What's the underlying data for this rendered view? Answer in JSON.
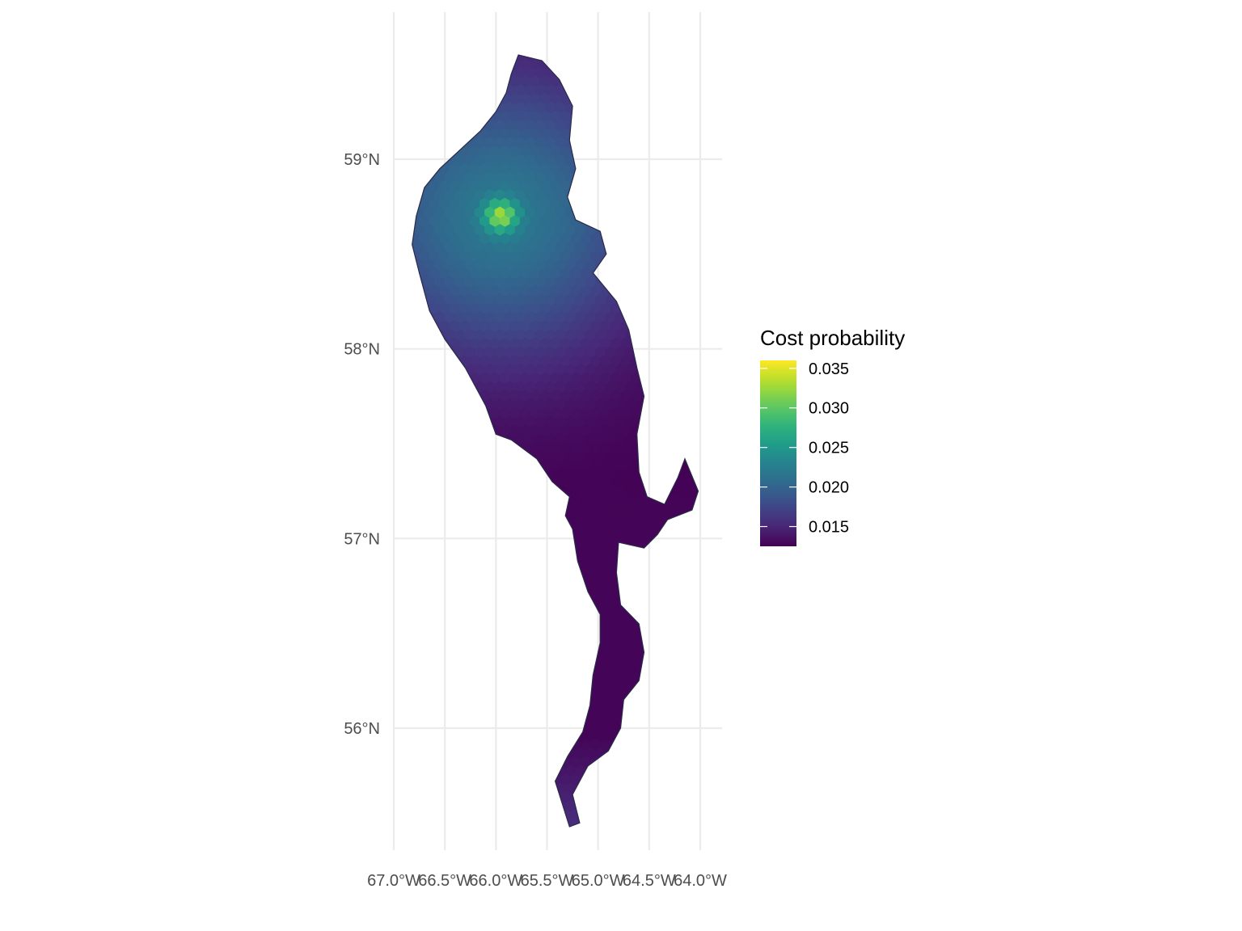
{
  "chart_data": {
    "type": "heatmap",
    "title": "",
    "xlabel": "",
    "ylabel": "",
    "x_ticks": [
      {
        "value": -67.0,
        "label": "67.0°W"
      },
      {
        "value": -66.5,
        "label": "66.5°W"
      },
      {
        "value": -66.0,
        "label": "66.0°W"
      },
      {
        "value": -65.5,
        "label": "65.5°W"
      },
      {
        "value": -65.0,
        "label": "65.0°W"
      },
      {
        "value": -64.5,
        "label": "64.5°W"
      },
      {
        "value": -64.0,
        "label": "64.0°W"
      }
    ],
    "y_ticks": [
      {
        "value": 56,
        "label": "56°N"
      },
      {
        "value": 57,
        "label": "57°N"
      },
      {
        "value": 58,
        "label": "58°N"
      },
      {
        "value": 59,
        "label": "59°N"
      }
    ],
    "xlim": [
      -67.0,
      -63.8
    ],
    "ylim": [
      55.4,
      59.6
    ],
    "grid": true,
    "colormap": "viridis",
    "legend": {
      "title": "Cost probability",
      "position": "right",
      "range": [
        0.0125,
        0.036
      ],
      "ticks": [
        {
          "value": 0.035,
          "label": "0.035"
        },
        {
          "value": 0.03,
          "label": "0.030"
        },
        {
          "value": 0.025,
          "label": "0.025"
        },
        {
          "value": 0.02,
          "label": "0.020"
        },
        {
          "value": 0.015,
          "label": "0.015"
        }
      ]
    },
    "value_field": {
      "background": 0.0125,
      "peaks": [
        {
          "lon": -65.95,
          "lat": 58.7,
          "amplitude": 0.0095,
          "radius_deg": 0.75
        },
        {
          "lon": -65.95,
          "lat": 58.7,
          "amplitude": 0.011,
          "radius_deg": 0.08
        }
      ],
      "south_trough": {
        "lat_max": 57.35,
        "value": 0.0128
      }
    },
    "region_outline": [
      [
        -65.78,
        59.55
      ],
      [
        -65.55,
        59.52
      ],
      [
        -65.38,
        59.42
      ],
      [
        -65.25,
        59.28
      ],
      [
        -65.28,
        59.1
      ],
      [
        -65.22,
        58.95
      ],
      [
        -65.3,
        58.8
      ],
      [
        -65.22,
        58.68
      ],
      [
        -64.98,
        58.62
      ],
      [
        -64.92,
        58.5
      ],
      [
        -65.05,
        58.4
      ],
      [
        -64.82,
        58.25
      ],
      [
        -64.7,
        58.1
      ],
      [
        -64.62,
        57.9
      ],
      [
        -64.55,
        57.75
      ],
      [
        -64.62,
        57.55
      ],
      [
        -64.6,
        57.35
      ],
      [
        -64.52,
        57.22
      ],
      [
        -64.35,
        57.18
      ],
      [
        -64.22,
        57.32
      ],
      [
        -64.15,
        57.42
      ],
      [
        -64.02,
        57.25
      ],
      [
        -64.08,
        57.15
      ],
      [
        -64.32,
        57.1
      ],
      [
        -64.42,
        57.02
      ],
      [
        -64.55,
        56.95
      ],
      [
        -64.8,
        56.98
      ],
      [
        -64.82,
        56.82
      ],
      [
        -64.78,
        56.65
      ],
      [
        -64.6,
        56.55
      ],
      [
        -64.55,
        56.4
      ],
      [
        -64.6,
        56.25
      ],
      [
        -64.75,
        56.15
      ],
      [
        -64.78,
        56.0
      ],
      [
        -64.9,
        55.88
      ],
      [
        -65.1,
        55.8
      ],
      [
        -65.25,
        55.65
      ],
      [
        -65.18,
        55.5
      ],
      [
        -65.28,
        55.48
      ],
      [
        -65.42,
        55.72
      ],
      [
        -65.3,
        55.85
      ],
      [
        -65.15,
        55.98
      ],
      [
        -65.08,
        56.12
      ],
      [
        -65.05,
        56.28
      ],
      [
        -64.98,
        56.45
      ],
      [
        -64.98,
        56.6
      ],
      [
        -65.1,
        56.72
      ],
      [
        -65.2,
        56.88
      ],
      [
        -65.25,
        57.05
      ],
      [
        -65.32,
        57.12
      ],
      [
        -65.28,
        57.22
      ],
      [
        -65.45,
        57.3
      ],
      [
        -65.6,
        57.42
      ],
      [
        -65.85,
        57.52
      ],
      [
        -66.0,
        57.55
      ],
      [
        -66.1,
        57.7
      ],
      [
        -66.3,
        57.9
      ],
      [
        -66.5,
        58.05
      ],
      [
        -66.65,
        58.2
      ],
      [
        -66.75,
        58.4
      ],
      [
        -66.82,
        58.55
      ],
      [
        -66.78,
        58.7
      ],
      [
        -66.7,
        58.85
      ],
      [
        -66.55,
        58.95
      ],
      [
        -66.35,
        59.05
      ],
      [
        -66.15,
        59.15
      ],
      [
        -66.0,
        59.25
      ],
      [
        -65.9,
        59.35
      ],
      [
        -65.85,
        59.45
      ]
    ]
  }
}
